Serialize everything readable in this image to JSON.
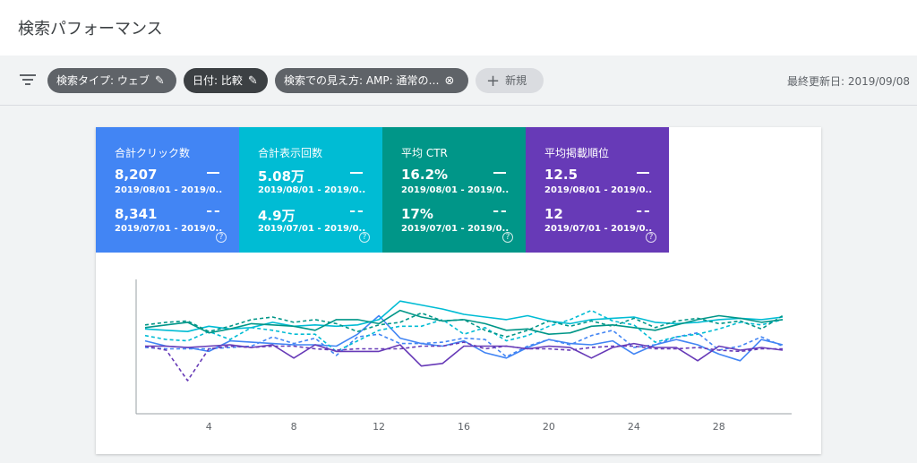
{
  "header": {
    "title": "検索パフォーマンス"
  },
  "filters": {
    "chips": [
      {
        "label": "検索タイプ: ウェブ",
        "icon": "pencil-icon"
      },
      {
        "label": "日付: 比較",
        "icon": "pencil-icon"
      },
      {
        "label": "検索での見え方: AMP: 通常の…",
        "icon": "clear-icon"
      }
    ],
    "new_label": "新規",
    "updated": "最終更新日: 2019/09/08"
  },
  "metrics": [
    {
      "title": "合計クリック数",
      "value1": "8,207",
      "date1": "2019/08/01 - 2019/0...",
      "value2": "8,341",
      "date2": "2019/07/01 - 2019/0...",
      "color": "#4285f4"
    },
    {
      "title": "合計表示回数",
      "value1": "5.08万",
      "date1": "2019/08/01 - 2019/0...",
      "value2": "4.9万",
      "date2": "2019/07/01 - 2019/0...",
      "color": "#00bcd4"
    },
    {
      "title": "平均 CTR",
      "value1": "16.2%",
      "date1": "2019/08/01 - 2019/0...",
      "value2": "17%",
      "date2": "2019/07/01 - 2019/0...",
      "color": "#009688"
    },
    {
      "title": "平均掲載順位",
      "value1": "12.5",
      "date1": "2019/08/01 - 2019/0...",
      "value2": "12",
      "date2": "2019/07/01 - 2019/0...",
      "color": "#673ab7"
    }
  ],
  "chart_data": {
    "type": "line",
    "x": [
      1,
      2,
      3,
      4,
      5,
      6,
      7,
      8,
      9,
      10,
      11,
      12,
      13,
      14,
      15,
      16,
      17,
      18,
      19,
      20,
      21,
      22,
      23,
      24,
      25,
      26,
      27,
      28,
      29,
      30,
      31
    ],
    "xticks": [
      "4",
      "8",
      "12",
      "16",
      "20",
      "24",
      "28"
    ],
    "xtick_values": [
      4,
      8,
      12,
      16,
      20,
      24,
      28
    ],
    "ylim": [
      0,
      100
    ],
    "grid": false,
    "series": [
      {
        "color": "#4285f4",
        "style": "solid",
        "values": [
          55,
          51,
          50,
          47,
          55,
          54,
          53,
          52,
          52,
          51,
          60,
          74,
          57,
          53,
          51,
          55,
          46,
          42,
          50,
          56,
          53,
          52,
          55,
          45,
          52,
          56,
          52,
          45,
          40,
          56,
          52
        ]
      },
      {
        "color": "#4285f4",
        "style": "dashed",
        "values": [
          50,
          49,
          49,
          49,
          50,
          51,
          58,
          53,
          57,
          44,
          58,
          60,
          53,
          53,
          54,
          57,
          56,
          43,
          51,
          56,
          52,
          59,
          63,
          50,
          52,
          58,
          61,
          48,
          51,
          58,
          51
        ]
      },
      {
        "color": "#00bcd4",
        "style": "solid",
        "values": [
          64,
          63,
          62,
          66,
          64,
          65,
          69,
          66,
          67,
          66,
          67,
          71,
          85,
          82,
          79,
          75,
          73,
          71,
          74,
          70,
          68,
          71,
          72,
          73,
          69,
          68,
          69,
          71,
          72,
          71,
          73
        ]
      },
      {
        "color": "#00bcd4",
        "style": "dashed",
        "values": [
          59,
          56,
          55,
          62,
          56,
          65,
          63,
          60,
          60,
          47,
          55,
          63,
          66,
          66,
          71,
          60,
          65,
          55,
          59,
          66,
          71,
          78,
          70,
          67,
          54,
          58,
          60,
          64,
          69,
          67,
          71
        ]
      },
      {
        "color": "#009688",
        "style": "solid",
        "values": [
          65,
          67,
          69,
          61,
          64,
          68,
          67,
          66,
          63,
          71,
          71,
          68,
          78,
          73,
          70,
          71,
          68,
          63,
          64,
          60,
          61,
          66,
          67,
          65,
          63,
          67,
          71,
          74,
          72,
          69,
          71
        ]
      },
      {
        "color": "#009688",
        "style": "dashed",
        "values": [
          67,
          69,
          70,
          62,
          66,
          71,
          73,
          69,
          71,
          68,
          62,
          67,
          69,
          76,
          70,
          71,
          63,
          58,
          63,
          70,
          66,
          70,
          66,
          72,
          65,
          70,
          72,
          68,
          70,
          64,
          74
        ]
      },
      {
        "color": "#673ab7",
        "style": "solid",
        "values": [
          51,
          51,
          50,
          51,
          52,
          50,
          52,
          42,
          52,
          47,
          47,
          47,
          52,
          36,
          38,
          51,
          51,
          51,
          49,
          51,
          50,
          42,
          50,
          53,
          50,
          50,
          40,
          51,
          48,
          50,
          48
        ]
      },
      {
        "color": "#673ab7",
        "style": "dashed",
        "values": [
          51,
          48,
          25,
          49,
          51,
          50,
          51,
          51,
          49,
          48,
          49,
          49,
          49,
          51,
          51,
          54,
          49,
          51,
          49,
          49,
          48,
          50,
          51,
          51,
          49,
          49,
          50,
          48,
          47,
          49,
          49
        ]
      }
    ]
  }
}
